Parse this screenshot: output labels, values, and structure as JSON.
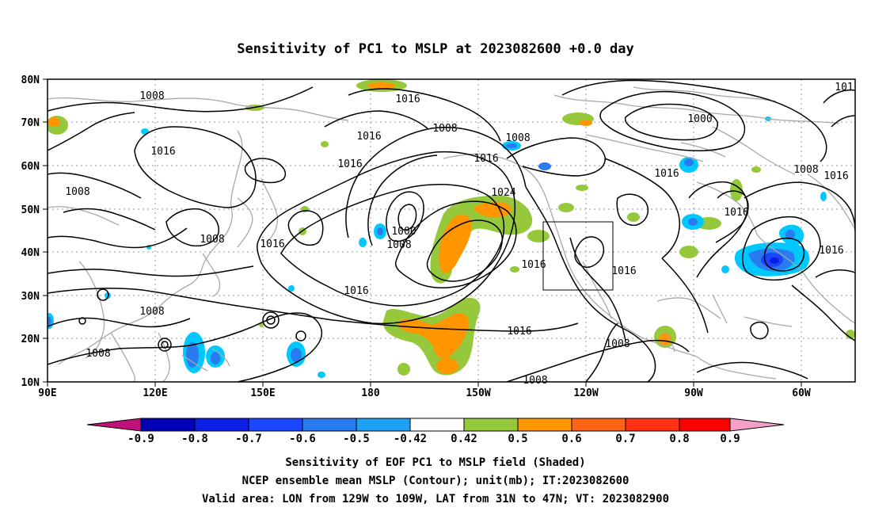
{
  "title": "Sensitivity of PC1 to MSLP at 2023082600 +0.0 day",
  "y_ticks": [
    "80N",
    "70N",
    "60N",
    "50N",
    "40N",
    "30N",
    "20N",
    "10N"
  ],
  "x_ticks": [
    "90E",
    "120E",
    "150E",
    "180",
    "150W",
    "120W",
    "90W",
    "60W"
  ],
  "contour_labels": {
    "l1008a": "1008",
    "l1008b": "1008",
    "l1008c": "1008",
    "l1008d": "1008",
    "l1008e": "1008",
    "l1008f": "1008",
    "l1008g": "1008",
    "l1008h": "1008",
    "l1008i": "1008",
    "l1008j": "1008",
    "l1008k": "1008",
    "l1016a": "1016",
    "l1016b": "1016",
    "l1016c": "1016",
    "l1016d": "1016",
    "l1016e": "1016",
    "l1016f": "1016",
    "l1016g": "1016",
    "l1016h": "1016",
    "l1016i": "1016",
    "l1016j": "1016",
    "l1016k": "1016",
    "l1016l": "1016",
    "l1016m": "1016",
    "l1016n": "1016",
    "l1000a": "1000",
    "l1000b": "1000",
    "l1024": "1024",
    "l101": "101"
  },
  "colorbar": {
    "labels": [
      "-0.9",
      "-0.8",
      "-0.7",
      "-0.6",
      "-0.5",
      "-0.42",
      "0.42",
      "0.5",
      "0.6",
      "0.7",
      "0.8",
      "0.9"
    ],
    "colors": {
      "under": "#c0107a",
      "b1": "#0000b4",
      "b2": "#0a1ee6",
      "b3": "#1a46ff",
      "b4": "#2a7af0",
      "b5": "#1ea0f5",
      "b6": "#00c8ff",
      "white": "#ffffff",
      "g1": "#96c83c",
      "o1": "#ff9600",
      "o2": "#ff6414",
      "o3": "#ff3214",
      "r1": "#ff0000",
      "over": "#f5a0c8"
    }
  },
  "caption": {
    "line1": "Sensitivity of EOF PC1 to MSLP field (Shaded)",
    "line2": "NCEP ensemble mean MSLP (Contour); unit(mb); IT:2023082600",
    "line3": "Valid area: LON from 129W to 109W, LAT from 31N to 47N; VT: 2023082900"
  }
}
